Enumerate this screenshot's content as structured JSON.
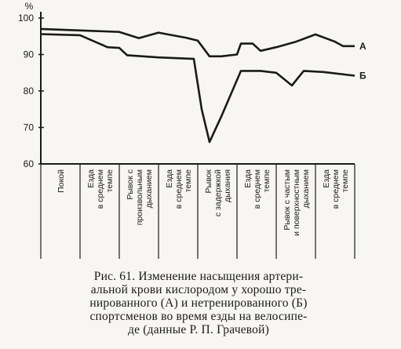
{
  "chart_data": {
    "type": "line",
    "y_unit": "%",
    "ylim": [
      60,
      100
    ],
    "yticks": [
      60,
      70,
      80,
      90,
      100
    ],
    "grid": false,
    "phases": [
      [
        "Покой"
      ],
      [
        "Езда",
        "в среднем",
        "темпе"
      ],
      [
        "Рывок с",
        "произвольным",
        "дыханием"
      ],
      [
        "Езда",
        "в среднем",
        "темпе"
      ],
      [
        "Рывок",
        "с задержкой",
        "дыхания"
      ],
      [
        "Езда",
        "в среднем",
        "темпе"
      ],
      [
        "Рывок с частым",
        "и поверхностным",
        "дыханием"
      ],
      [
        "Езда",
        "в среднем",
        "темпе"
      ]
    ],
    "x_range": [
      0,
      8
    ],
    "series": [
      {
        "name": "А",
        "points": [
          [
            0,
            97
          ],
          [
            1.0,
            96.6
          ],
          [
            2.0,
            96.2
          ],
          [
            2.5,
            94.5
          ],
          [
            3.0,
            96
          ],
          [
            3.7,
            94.6
          ],
          [
            4.0,
            93.8
          ],
          [
            4.3,
            89.5
          ],
          [
            4.6,
            89.5
          ],
          [
            5.0,
            90
          ],
          [
            5.1,
            93
          ],
          [
            5.4,
            93
          ],
          [
            5.6,
            91
          ],
          [
            6.0,
            92
          ],
          [
            6.5,
            93.5
          ],
          [
            7.0,
            95.5
          ],
          [
            7.5,
            93.5
          ],
          [
            7.7,
            92.3
          ],
          [
            8.0,
            92.3
          ]
        ]
      },
      {
        "name": "Б",
        "points": [
          [
            0,
            95.6
          ],
          [
            1.0,
            95.3
          ],
          [
            1.7,
            92
          ],
          [
            2.0,
            91.8
          ],
          [
            2.2,
            89.8
          ],
          [
            3.0,
            89.2
          ],
          [
            3.9,
            88.8
          ],
          [
            4.1,
            75
          ],
          [
            4.3,
            66
          ],
          [
            4.6,
            73
          ],
          [
            5.1,
            85.5
          ],
          [
            5.6,
            85.5
          ],
          [
            6.0,
            85
          ],
          [
            6.4,
            81.5
          ],
          [
            6.7,
            85.5
          ],
          [
            7.2,
            85.2
          ],
          [
            8.0,
            84.2
          ]
        ]
      }
    ]
  },
  "caption": [
    "Рис. 61. Изменение насыщения артери-",
    "альной крови кислородом у хорошо тре-",
    "нированного (А) и нетренированного (Б)",
    "спортсменов во время езды на велосипе-",
    "де (данные Р. П. Грачевой)"
  ]
}
